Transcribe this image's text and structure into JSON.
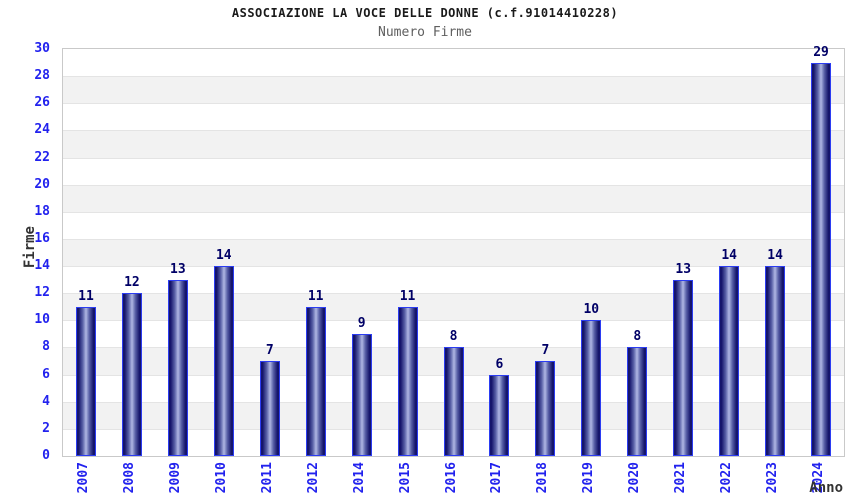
{
  "chart_data": {
    "type": "bar",
    "title": "ASSOCIAZIONE LA VOCE DELLE DONNE (c.f.91014410228)",
    "subtitle": "Numero Firme",
    "xlabel": "Anno",
    "ylabel": "Firme",
    "categories": [
      "2007",
      "2008",
      "2009",
      "2010",
      "2011",
      "2012",
      "2014",
      "2015",
      "2016",
      "2017",
      "2018",
      "2019",
      "2020",
      "2021",
      "2022",
      "2023",
      "2024"
    ],
    "values": [
      11,
      12,
      13,
      14,
      7,
      11,
      9,
      11,
      8,
      6,
      7,
      10,
      8,
      13,
      14,
      14,
      29
    ],
    "ylim": [
      0,
      30
    ],
    "ytick_step": 2,
    "grid": "horizontal-bands-alternating",
    "legend": "none",
    "bar_value_labels": true,
    "colors": {
      "title": "#1a1a1a",
      "subtitle": "#5f5f5f",
      "tick_label": "#2222ee",
      "value_label": "#000066",
      "axis_title": "#333333",
      "plot_border": "#c9c9c9",
      "band_gray": "#f2f2f2",
      "grid_line": "#e4e4e4",
      "bar_dark": "#15156b",
      "bar_mid": "#5a62a8",
      "bar_light": "#b0b7e4",
      "bar_outline": "#2b3cf2"
    }
  }
}
